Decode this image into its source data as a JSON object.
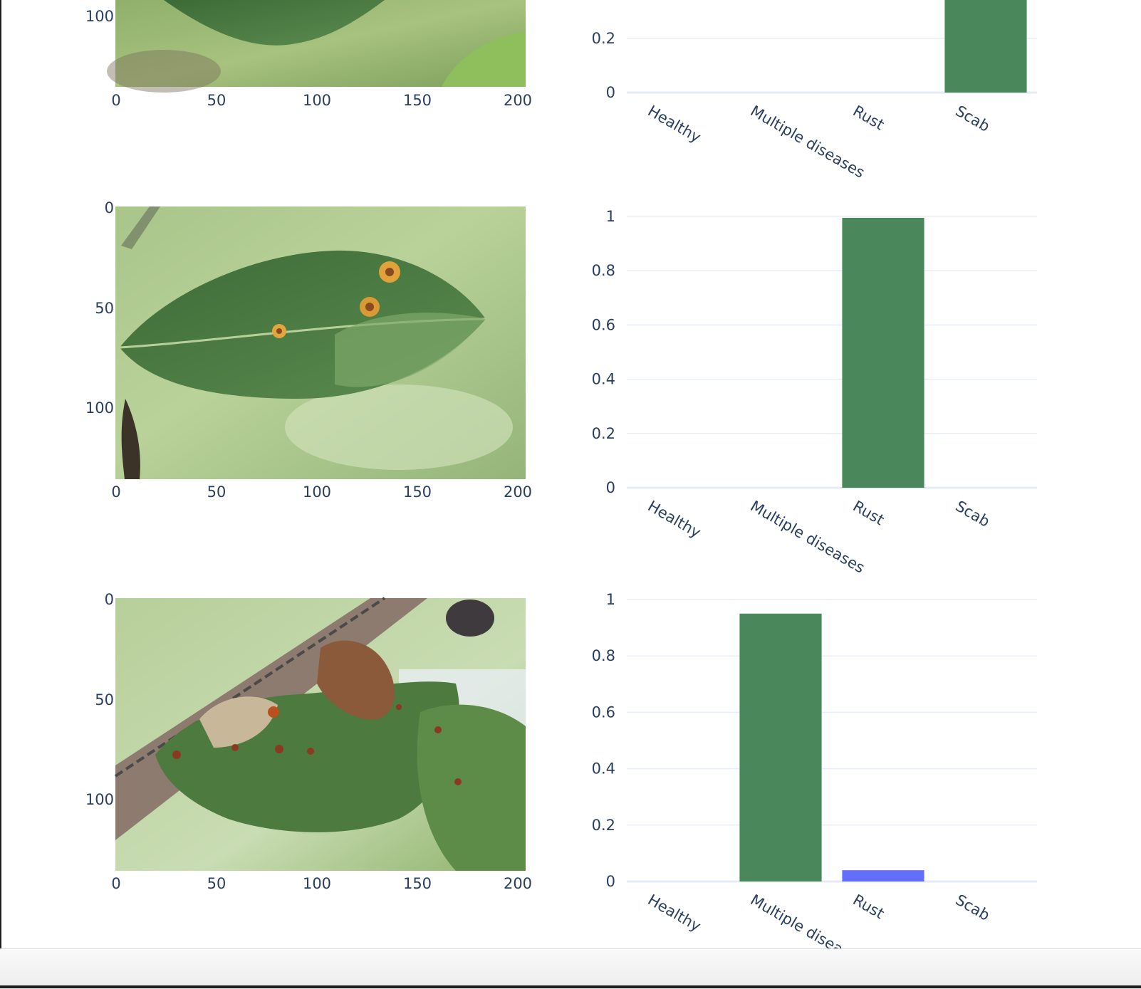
{
  "colors": {
    "bar_primary": "#4a885c",
    "bar_secondary": "#636efa",
    "grid": "#e8eef5",
    "text": "#2a3f5f"
  },
  "image_axes": {
    "x_ticks": [
      "0",
      "50",
      "100",
      "150",
      "200"
    ],
    "y_ticks": [
      "0",
      "50",
      "100"
    ],
    "x_range": [
      0,
      205
    ],
    "y_range": [
      0,
      136
    ]
  },
  "bar_axes": {
    "y_ticks": [
      "0",
      "0.2",
      "0.4",
      "0.6",
      "0.8",
      "1"
    ]
  },
  "chart_data": [
    {
      "type": "bar",
      "categories": [
        "Healthy",
        "Multiple diseases",
        "Rust",
        "Scab"
      ],
      "values": [
        0,
        0,
        0,
        1
      ],
      "ylim": [
        0,
        1
      ],
      "grid": true,
      "note": "partially visible at top of screenshot"
    },
    {
      "type": "bar",
      "categories": [
        "Healthy",
        "Multiple diseases",
        "Rust",
        "Scab"
      ],
      "values": [
        0,
        0,
        0.995,
        0
      ],
      "ylim": [
        0,
        1
      ],
      "grid": true
    },
    {
      "type": "bar",
      "categories": [
        "Healthy",
        "Multiple diseases",
        "Rust",
        "Scab"
      ],
      "values": [
        0,
        0.95,
        0.04,
        0
      ],
      "ylim": [
        0,
        1
      ],
      "grid": true
    }
  ]
}
